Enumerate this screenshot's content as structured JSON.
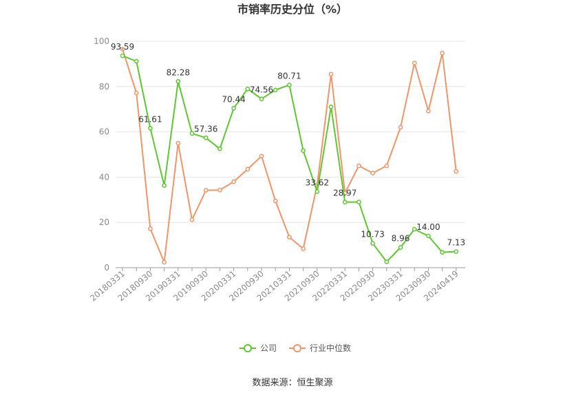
{
  "chart_data": {
    "type": "line",
    "title": "市销率历史分位（%）",
    "source": "数据来源：恒生聚源",
    "ylim": [
      0,
      100
    ],
    "yticks": [
      "0",
      "20",
      "40",
      "60",
      "80",
      "100"
    ],
    "xtick_labels": [
      "20180331",
      "20180930",
      "20190331",
      "20190930",
      "20200331",
      "20200930",
      "20210331",
      "20210930",
      "20220331",
      "20220930",
      "20230331",
      "20230930",
      "20240419"
    ],
    "grid": true,
    "legend_position": "bottom",
    "series": [
      {
        "name": "公司",
        "color": "#5ec630",
        "values": [
          93.59,
          91.2,
          61.61,
          36.3,
          82.28,
          59.3,
          57.36,
          52.5,
          70.44,
          79.0,
          74.56,
          78.5,
          80.71,
          51.7,
          33.62,
          71.0,
          28.97,
          29.0,
          10.73,
          2.6,
          8.96,
          17.0,
          14.0,
          6.8,
          7.13
        ],
        "labels": [
          "93.59",
          "",
          "61.61",
          "",
          "82.28",
          "",
          "57.36",
          "",
          "70.44",
          "",
          "74.56",
          "",
          "80.71",
          "",
          "33.62",
          "",
          "28.97",
          "",
          "10.73",
          "",
          "8.96",
          "",
          "14.00",
          "",
          "7.13"
        ]
      },
      {
        "name": "行业中位数",
        "color": "#f0946a",
        "values": [
          96.5,
          77.2,
          17.2,
          2.4,
          55.0,
          21.2,
          34.2,
          34.3,
          38.0,
          43.5,
          49.3,
          29.5,
          13.5,
          8.4,
          36.5,
          85.5,
          33.0,
          45.0,
          41.8,
          45.0,
          62.0,
          90.4,
          69.2,
          94.8,
          42.5
        ]
      }
    ]
  }
}
